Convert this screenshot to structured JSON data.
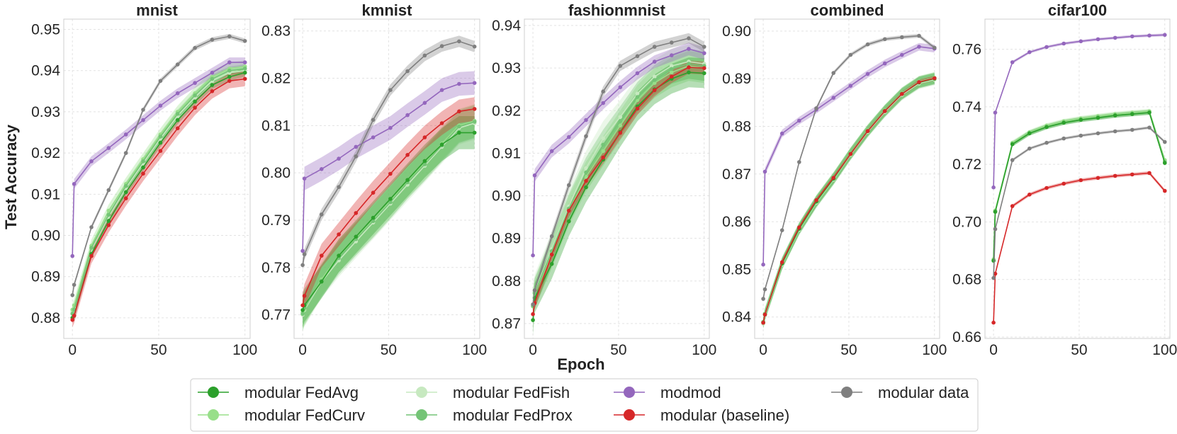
{
  "figure": {
    "xlabel": "Epoch",
    "ylabel": "Test Accuracy"
  },
  "legend": {
    "placement": "bottom-center",
    "entries": [
      {
        "name": "modular FedAvg",
        "color": "#2ca02c"
      },
      {
        "name": "modular FedCurv",
        "color": "#98df8a"
      },
      {
        "name": "modular FedFish",
        "color": "#c7e9c0"
      },
      {
        "name": "modular FedProx",
        "color": "#74c476"
      },
      {
        "name": "modmod",
        "color": "#9467bd"
      },
      {
        "name": "modular (baseline)",
        "color": "#d62728"
      },
      {
        "name": "modular data",
        "color": "#7f7f7f"
      }
    ]
  },
  "chart_data": [
    {
      "type": "line",
      "title": "mnist",
      "xlabel": "Epoch",
      "ylabel": "Test Accuracy",
      "grid": true,
      "xlim": [
        -5,
        103
      ],
      "ylim": [
        0.875,
        0.9525
      ],
      "xticks": [
        0,
        50,
        100
      ],
      "yticks": [
        0.88,
        0.89,
        0.9,
        0.91,
        0.92,
        0.93,
        0.94,
        0.95
      ],
      "ytick_labels": [
        "0.88",
        "0.89",
        "0.90",
        "0.91",
        "0.92",
        "0.93",
        "0.94",
        "0.95"
      ],
      "x": [
        0,
        1,
        11,
        21,
        31,
        41,
        51,
        61,
        71,
        81,
        91,
        100
      ],
      "series": [
        {
          "name": "modular FedAvg",
          "color": "#2ca02c",
          "band": 0.001,
          "values": [
            0.88,
            0.8805,
            0.8955,
            0.9035,
            0.9105,
            0.9165,
            0.9225,
            0.928,
            0.9325,
            0.9365,
            0.9385,
            0.9395
          ]
        },
        {
          "name": "modular FedCurv",
          "color": "#98df8a",
          "band": 0.0015,
          "values": [
            0.882,
            0.883,
            0.8975,
            0.906,
            0.9125,
            0.9185,
            0.9245,
            0.93,
            0.9345,
            0.9385,
            0.9405,
            0.941
          ]
        },
        {
          "name": "modular FedFish",
          "color": "#c7e9c0",
          "band": 0.0012,
          "values": [
            0.8815,
            0.8825,
            0.8965,
            0.9045,
            0.9115,
            0.9175,
            0.9235,
            0.929,
            0.9335,
            0.9375,
            0.9395,
            0.94
          ]
        },
        {
          "name": "modular FedProx",
          "color": "#74c476",
          "band": 0.001,
          "values": [
            0.881,
            0.882,
            0.897,
            0.905,
            0.912,
            0.918,
            0.924,
            0.9295,
            0.934,
            0.938,
            0.94,
            0.9405
          ]
        },
        {
          "name": "modmod",
          "color": "#9467bd",
          "band": 0.0012,
          "values": [
            0.895,
            0.9125,
            0.918,
            0.9212,
            0.9245,
            0.928,
            0.9315,
            0.9345,
            0.937,
            0.9395,
            0.942,
            0.942
          ]
        },
        {
          "name": "modular (baseline)",
          "color": "#d62728",
          "band": 0.0018,
          "values": [
            0.8795,
            0.8805,
            0.895,
            0.9025,
            0.909,
            0.915,
            0.9205,
            0.926,
            0.931,
            0.935,
            0.9375,
            0.938
          ]
        },
        {
          "name": "modular data",
          "color": "#7f7f7f",
          "band": 0.0006,
          "values": [
            0.8855,
            0.888,
            0.902,
            0.911,
            0.92,
            0.9305,
            0.9375,
            0.9415,
            0.9455,
            0.9475,
            0.9483,
            0.9472
          ]
        }
      ]
    },
    {
      "type": "line",
      "title": "kmnist",
      "xlabel": "Epoch",
      "ylabel": "",
      "grid": true,
      "xlim": [
        -5,
        103
      ],
      "ylim": [
        0.765,
        0.8325
      ],
      "xticks": [
        0,
        50,
        100
      ],
      "yticks": [
        0.77,
        0.78,
        0.79,
        0.8,
        0.81,
        0.82,
        0.83
      ],
      "ytick_labels": [
        "0.77",
        "0.78",
        "0.79",
        "0.80",
        "0.81",
        "0.82",
        "0.83"
      ],
      "x": [
        0,
        1,
        11,
        21,
        31,
        41,
        51,
        61,
        71,
        81,
        91,
        100
      ],
      "series": [
        {
          "name": "modular FedAvg",
          "color": "#2ca02c",
          "band": 0.0035,
          "values": [
            0.771,
            0.772,
            0.777,
            0.7825,
            0.7865,
            0.7905,
            0.7945,
            0.7985,
            0.8025,
            0.806,
            0.8085,
            0.8085
          ]
        },
        {
          "name": "modular FedCurv",
          "color": "#98df8a",
          "band": 0.0035,
          "values": [
            0.7705,
            0.7712,
            0.7775,
            0.7825,
            0.7862,
            0.79,
            0.794,
            0.7982,
            0.802,
            0.8062,
            0.81,
            0.811
          ]
        },
        {
          "name": "modular FedFish",
          "color": "#c7e9c0",
          "band": 0.0035,
          "values": [
            0.77,
            0.771,
            0.777,
            0.7815,
            0.7855,
            0.7895,
            0.7935,
            0.7975,
            0.8015,
            0.8055,
            0.8095,
            0.8105
          ]
        },
        {
          "name": "modular FedProx",
          "color": "#74c476",
          "band": 0.0035,
          "values": [
            0.7702,
            0.7715,
            0.7772,
            0.782,
            0.786,
            0.7898,
            0.7938,
            0.798,
            0.8018,
            0.8058,
            0.8098,
            0.8108
          ]
        },
        {
          "name": "modmod",
          "color": "#9467bd",
          "band": 0.0025,
          "values": [
            0.7835,
            0.7988,
            0.8008,
            0.803,
            0.8055,
            0.8075,
            0.8095,
            0.8122,
            0.8148,
            0.8175,
            0.8188,
            0.819
          ]
        },
        {
          "name": "modular (baseline)",
          "color": "#d62728",
          "band": 0.0025,
          "values": [
            0.772,
            0.774,
            0.7825,
            0.787,
            0.7915,
            0.7958,
            0.7998,
            0.8038,
            0.8075,
            0.8105,
            0.813,
            0.8135
          ]
        },
        {
          "name": "modular data",
          "color": "#7f7f7f",
          "band": 0.0012,
          "values": [
            0.7805,
            0.7828,
            0.7912,
            0.797,
            0.8035,
            0.8112,
            0.8175,
            0.8215,
            0.8248,
            0.8268,
            0.8278,
            0.8267
          ]
        }
      ]
    },
    {
      "type": "line",
      "title": "fashionmnist",
      "xlabel": "Epoch",
      "ylabel": "",
      "grid": true,
      "xlim": [
        -5,
        103
      ],
      "ylim": [
        0.8665,
        0.9415
      ],
      "xticks": [
        0,
        50,
        100
      ],
      "yticks": [
        0.87,
        0.88,
        0.89,
        0.9,
        0.91,
        0.92,
        0.93,
        0.94
      ],
      "ytick_labels": [
        "0.87",
        "0.88",
        "0.89",
        "0.90",
        "0.91",
        "0.92",
        "0.93",
        "0.94"
      ],
      "x": [
        0,
        1,
        11,
        21,
        31,
        41,
        51,
        61,
        71,
        81,
        91,
        100
      ],
      "series": [
        {
          "name": "modular FedAvg",
          "color": "#2ca02c",
          "band": 0.0035,
          "values": [
            0.8708,
            0.876,
            0.884,
            0.894,
            0.902,
            0.9085,
            0.915,
            0.921,
            0.925,
            0.9275,
            0.929,
            0.9288
          ]
        },
        {
          "name": "modular FedCurv",
          "color": "#98df8a",
          "band": 0.0035,
          "values": [
            0.874,
            0.877,
            0.8865,
            0.8965,
            0.9045,
            0.9105,
            0.9165,
            0.9225,
            0.9265,
            0.929,
            0.9305,
            0.93
          ]
        },
        {
          "name": "modular FedFish",
          "color": "#c7e9c0",
          "band": 0.004,
          "values": [
            0.8745,
            0.8775,
            0.8875,
            0.8975,
            0.9065,
            0.9135,
            0.9185,
            0.924,
            0.928,
            0.9305,
            0.9315,
            0.931
          ]
        },
        {
          "name": "modular FedProx",
          "color": "#74c476",
          "band": 0.0035,
          "values": [
            0.8742,
            0.8772,
            0.887,
            0.897,
            0.9055,
            0.912,
            0.9175,
            0.9232,
            0.9272,
            0.9298,
            0.931,
            0.9305
          ]
        },
        {
          "name": "modmod",
          "color": "#9467bd",
          "band": 0.0015,
          "values": [
            0.886,
            0.9048,
            0.9105,
            0.9138,
            0.9178,
            0.9218,
            0.9255,
            0.9288,
            0.9315,
            0.933,
            0.9345,
            0.9335
          ]
        },
        {
          "name": "modular (baseline)",
          "color": "#d62728",
          "band": 0.0015,
          "values": [
            0.8722,
            0.8748,
            0.8862,
            0.8965,
            0.9035,
            0.909,
            0.9148,
            0.9205,
            0.9248,
            0.928,
            0.9302,
            0.93
          ]
        },
        {
          "name": "modular data",
          "color": "#7f7f7f",
          "band": 0.0012,
          "values": [
            0.8745,
            0.8778,
            0.8905,
            0.9025,
            0.914,
            0.9245,
            0.9305,
            0.9328,
            0.935,
            0.936,
            0.937,
            0.935
          ]
        }
      ]
    },
    {
      "type": "line",
      "title": "combined",
      "xlabel": "Epoch",
      "ylabel": "",
      "grid": true,
      "xlim": [
        -5,
        103
      ],
      "ylim": [
        0.8355,
        0.9025
      ],
      "xticks": [
        0,
        50,
        100
      ],
      "yticks": [
        0.84,
        0.85,
        0.86,
        0.87,
        0.88,
        0.89,
        0.9
      ],
      "ytick_labels": [
        "0.84",
        "0.85",
        "0.86",
        "0.87",
        "0.88",
        "0.89",
        "0.90"
      ],
      "x": [
        0,
        1,
        11,
        21,
        31,
        41,
        51,
        61,
        71,
        81,
        91,
        100
      ],
      "series": [
        {
          "name": "modular FedAvg",
          "color": "#2ca02c",
          "band": 0.0012,
          "values": [
            0.8388,
            0.8405,
            0.8512,
            0.8585,
            0.8642,
            0.869,
            0.8742,
            0.879,
            0.8832,
            0.8868,
            0.8892,
            0.89
          ]
        },
        {
          "name": "modular FedCurv",
          "color": "#98df8a",
          "band": 0.0012,
          "values": [
            0.839,
            0.8407,
            0.8514,
            0.8587,
            0.8644,
            0.8692,
            0.8744,
            0.8792,
            0.8834,
            0.887,
            0.8894,
            0.8902
          ]
        },
        {
          "name": "modular FedFish",
          "color": "#c7e9c0",
          "band": 0.0012,
          "values": [
            0.8386,
            0.8403,
            0.851,
            0.8583,
            0.864,
            0.8688,
            0.874,
            0.8788,
            0.883,
            0.8866,
            0.889,
            0.8898
          ]
        },
        {
          "name": "modular FedProx",
          "color": "#74c476",
          "band": 0.0012,
          "values": [
            0.8389,
            0.8406,
            0.8513,
            0.8586,
            0.8643,
            0.8691,
            0.8743,
            0.8791,
            0.8833,
            0.8869,
            0.8893,
            0.8901
          ]
        },
        {
          "name": "modmod",
          "color": "#9467bd",
          "band": 0.0008,
          "values": [
            0.851,
            0.8705,
            0.8785,
            0.8812,
            0.8835,
            0.886,
            0.8885,
            0.891,
            0.8932,
            0.895,
            0.8967,
            0.8963
          ]
        },
        {
          "name": "modular (baseline)",
          "color": "#d62728",
          "band": 0.0005,
          "values": [
            0.8388,
            0.8405,
            0.8515,
            0.8588,
            0.8645,
            0.8692,
            0.8742,
            0.879,
            0.8832,
            0.8868,
            0.8893,
            0.8901
          ]
        },
        {
          "name": "modular data",
          "color": "#7f7f7f",
          "band": 0.0004,
          "values": [
            0.8438,
            0.8458,
            0.8582,
            0.8725,
            0.8838,
            0.8912,
            0.895,
            0.8972,
            0.8983,
            0.8987,
            0.899,
            0.8965
          ]
        }
      ]
    },
    {
      "type": "line",
      "title": "cifar100",
      "xlabel": "Epoch",
      "ylabel": "",
      "grid": true,
      "xlim": [
        -5,
        103
      ],
      "ylim": [
        0.6595,
        0.7705
      ],
      "xticks": [
        0,
        50,
        100
      ],
      "yticks": [
        0.66,
        0.68,
        0.7,
        0.72,
        0.74,
        0.76
      ],
      "ytick_labels": [
        "0.66",
        "0.68",
        "0.70",
        "0.72",
        "0.74",
        "0.76"
      ],
      "x": [
        0,
        1,
        11,
        21,
        31,
        41,
        51,
        61,
        71,
        81,
        91,
        100
      ],
      "series": [
        {
          "name": "modular FedAvg",
          "color": "#2ca02c",
          "band": 0.0008,
          "values": [
            0.6865,
            0.7035,
            0.727,
            0.7308,
            0.733,
            0.7345,
            0.7355,
            0.7362,
            0.737,
            0.7375,
            0.738,
            0.7205
          ]
        },
        {
          "name": "modular FedCurv",
          "color": "#98df8a",
          "band": 0.0008,
          "values": [
            0.687,
            0.704,
            0.7275,
            0.7312,
            0.7335,
            0.735,
            0.736,
            0.7368,
            0.7375,
            0.738,
            0.7385,
            0.7215
          ]
        },
        {
          "name": "modular FedFish",
          "color": "#c7e9c0",
          "band": 0.0008,
          "values": [
            0.6868,
            0.7038,
            0.7272,
            0.731,
            0.7332,
            0.7348,
            0.7358,
            0.7365,
            0.7372,
            0.7378,
            0.7382,
            0.7212
          ]
        },
        {
          "name": "modular FedProx",
          "color": "#74c476",
          "band": 0.0008,
          "values": [
            0.6866,
            0.7036,
            0.7271,
            0.7309,
            0.7331,
            0.7346,
            0.7356,
            0.7364,
            0.7371,
            0.7376,
            0.7381,
            0.7208
          ]
        },
        {
          "name": "modmod",
          "color": "#9467bd",
          "band": 0.0005,
          "values": [
            0.712,
            0.738,
            0.7555,
            0.759,
            0.7608,
            0.762,
            0.7628,
            0.7635,
            0.764,
            0.7645,
            0.7648,
            0.765
          ]
        },
        {
          "name": "modular (baseline)",
          "color": "#d62728",
          "band": 0.0006,
          "values": [
            0.665,
            0.682,
            0.7055,
            0.7095,
            0.7118,
            0.7133,
            0.7145,
            0.7153,
            0.716,
            0.7165,
            0.717,
            0.7108
          ]
        },
        {
          "name": "modular data",
          "color": "#7f7f7f",
          "band": 0.0005,
          "values": [
            0.6805,
            0.6975,
            0.7215,
            0.7255,
            0.7275,
            0.729,
            0.73,
            0.7308,
            0.7315,
            0.732,
            0.7328,
            0.7278
          ]
        }
      ]
    }
  ]
}
